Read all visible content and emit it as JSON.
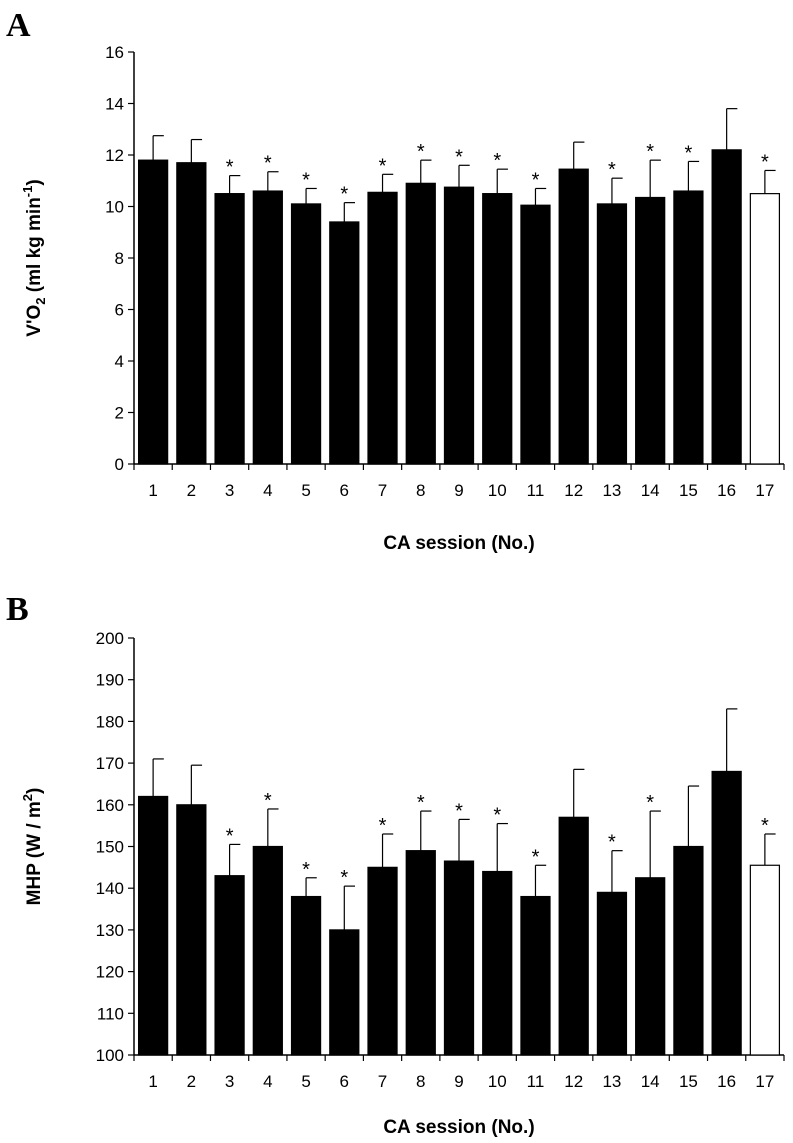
{
  "chart_data": [
    {
      "type": "bar",
      "panel": "A",
      "categories": [
        "1",
        "2",
        "3",
        "4",
        "5",
        "6",
        "7",
        "8",
        "9",
        "10",
        "11",
        "12",
        "13",
        "14",
        "15",
        "16",
        "17"
      ],
      "values": [
        11.8,
        11.7,
        10.5,
        10.6,
        10.1,
        9.4,
        10.55,
        10.9,
        10.75,
        10.5,
        10.05,
        11.45,
        10.1,
        10.35,
        10.6,
        12.2,
        10.5
      ],
      "errors": [
        0.95,
        0.9,
        0.7,
        0.75,
        0.6,
        0.75,
        0.7,
        0.9,
        0.85,
        0.95,
        0.65,
        1.05,
        1.0,
        1.45,
        1.15,
        1.6,
        0.9
      ],
      "significant": [
        false,
        false,
        true,
        true,
        true,
        true,
        true,
        true,
        true,
        true,
        true,
        false,
        true,
        true,
        true,
        false,
        true
      ],
      "bar_fill": [
        "#000000",
        "#000000",
        "#000000",
        "#000000",
        "#000000",
        "#000000",
        "#000000",
        "#000000",
        "#000000",
        "#000000",
        "#000000",
        "#000000",
        "#000000",
        "#000000",
        "#000000",
        "#000000",
        "#ffffff"
      ],
      "marker": "*",
      "xlabel": "CA session (No.)",
      "ylabel": {
        "prefix": "V'O",
        "sub": "2",
        "middle": " (ml kg min",
        "sup": "-1",
        "suffix": ")"
      },
      "ylim": [
        0,
        16
      ],
      "yticks": [
        0,
        2,
        4,
        6,
        8,
        10,
        12,
        14,
        16
      ],
      "grid": false
    },
    {
      "type": "bar",
      "panel": "B",
      "categories": [
        "1",
        "2",
        "3",
        "4",
        "5",
        "6",
        "7",
        "8",
        "9",
        "10",
        "11",
        "12",
        "13",
        "14",
        "15",
        "16",
        "17"
      ],
      "values": [
        162,
        160,
        143,
        150,
        138,
        130,
        145,
        149,
        146.5,
        144,
        138,
        157,
        139,
        142.5,
        150,
        168,
        145.5
      ],
      "errors": [
        9,
        9.5,
        7.5,
        9,
        4.5,
        10.5,
        8,
        9.5,
        10,
        11.5,
        7.5,
        11.5,
        10,
        16,
        14.5,
        15,
        7.5
      ],
      "significant": [
        false,
        false,
        true,
        true,
        true,
        true,
        true,
        true,
        true,
        true,
        true,
        false,
        true,
        true,
        false,
        false,
        true
      ],
      "bar_fill": [
        "#000000",
        "#000000",
        "#000000",
        "#000000",
        "#000000",
        "#000000",
        "#000000",
        "#000000",
        "#000000",
        "#000000",
        "#000000",
        "#000000",
        "#000000",
        "#000000",
        "#000000",
        "#000000",
        "#ffffff"
      ],
      "marker": "*",
      "xlabel": "CA session (No.)",
      "ylabel": {
        "prefix": "MHP (W / m",
        "sub": "",
        "middle": "",
        "sup": "2",
        "suffix": ")"
      },
      "ylim": [
        100,
        200
      ],
      "yticks": [
        100,
        110,
        120,
        130,
        140,
        150,
        160,
        170,
        180,
        190,
        200
      ],
      "grid": false
    }
  ]
}
